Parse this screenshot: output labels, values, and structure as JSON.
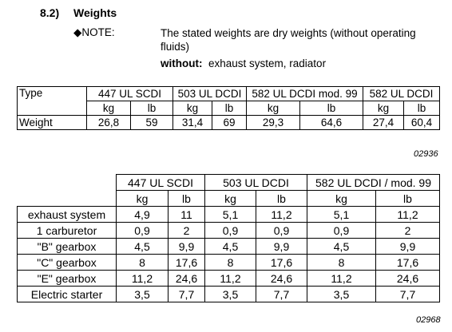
{
  "section": {
    "number": "8.2)",
    "title": "Weights"
  },
  "note": {
    "label": "◆NOTE:",
    "text": "The stated weights are dry weights (without operating fluids)",
    "without": {
      "label": "without:",
      "text": "exhaust system, radiator"
    }
  },
  "table1": {
    "header": [
      "Type",
      "447 UL SCDI",
      "503 UL DCDI",
      "582 UL DCDI mod. 99",
      "582 UL DCDI"
    ],
    "units": [
      "kg",
      "lb",
      "kg",
      "lb",
      "kg",
      "lb",
      "kg",
      "lb"
    ],
    "rows": [
      [
        "Weight",
        "26,8",
        "59",
        "31,4",
        "69",
        "29,3",
        "64,6",
        "27,4",
        "60,4"
      ]
    ],
    "figure": "02936"
  },
  "table2": {
    "header": [
      "447 UL SCDI",
      "503 UL DCDI",
      "582 UL DCDI / mod. 99"
    ],
    "units": [
      "kg",
      "lb",
      "kg",
      "lb",
      "kg",
      "lb"
    ],
    "rows": [
      [
        "exhaust system",
        "4,9",
        "11",
        "5,1",
        "11,2",
        "5,1",
        "11,2"
      ],
      [
        "1 carburetor",
        "0,9",
        "2",
        "0,9",
        "0,9",
        "0,9",
        "2"
      ],
      [
        "\"B\" gearbox",
        "4,5",
        "9,9",
        "4,5",
        "9,9",
        "4,5",
        "9,9"
      ],
      [
        "\"C\" gearbox",
        "8",
        "17,6",
        "8",
        "17,6",
        "8",
        "17,6"
      ],
      [
        "\"E\" gearbox",
        "11,2",
        "24,6",
        "11,2",
        "24,6",
        "11,2",
        "24,6"
      ],
      [
        "Electric starter",
        "3,5",
        "7,7",
        "3,5",
        "7,7",
        "3,5",
        "7,7"
      ]
    ],
    "figure": "02968"
  }
}
